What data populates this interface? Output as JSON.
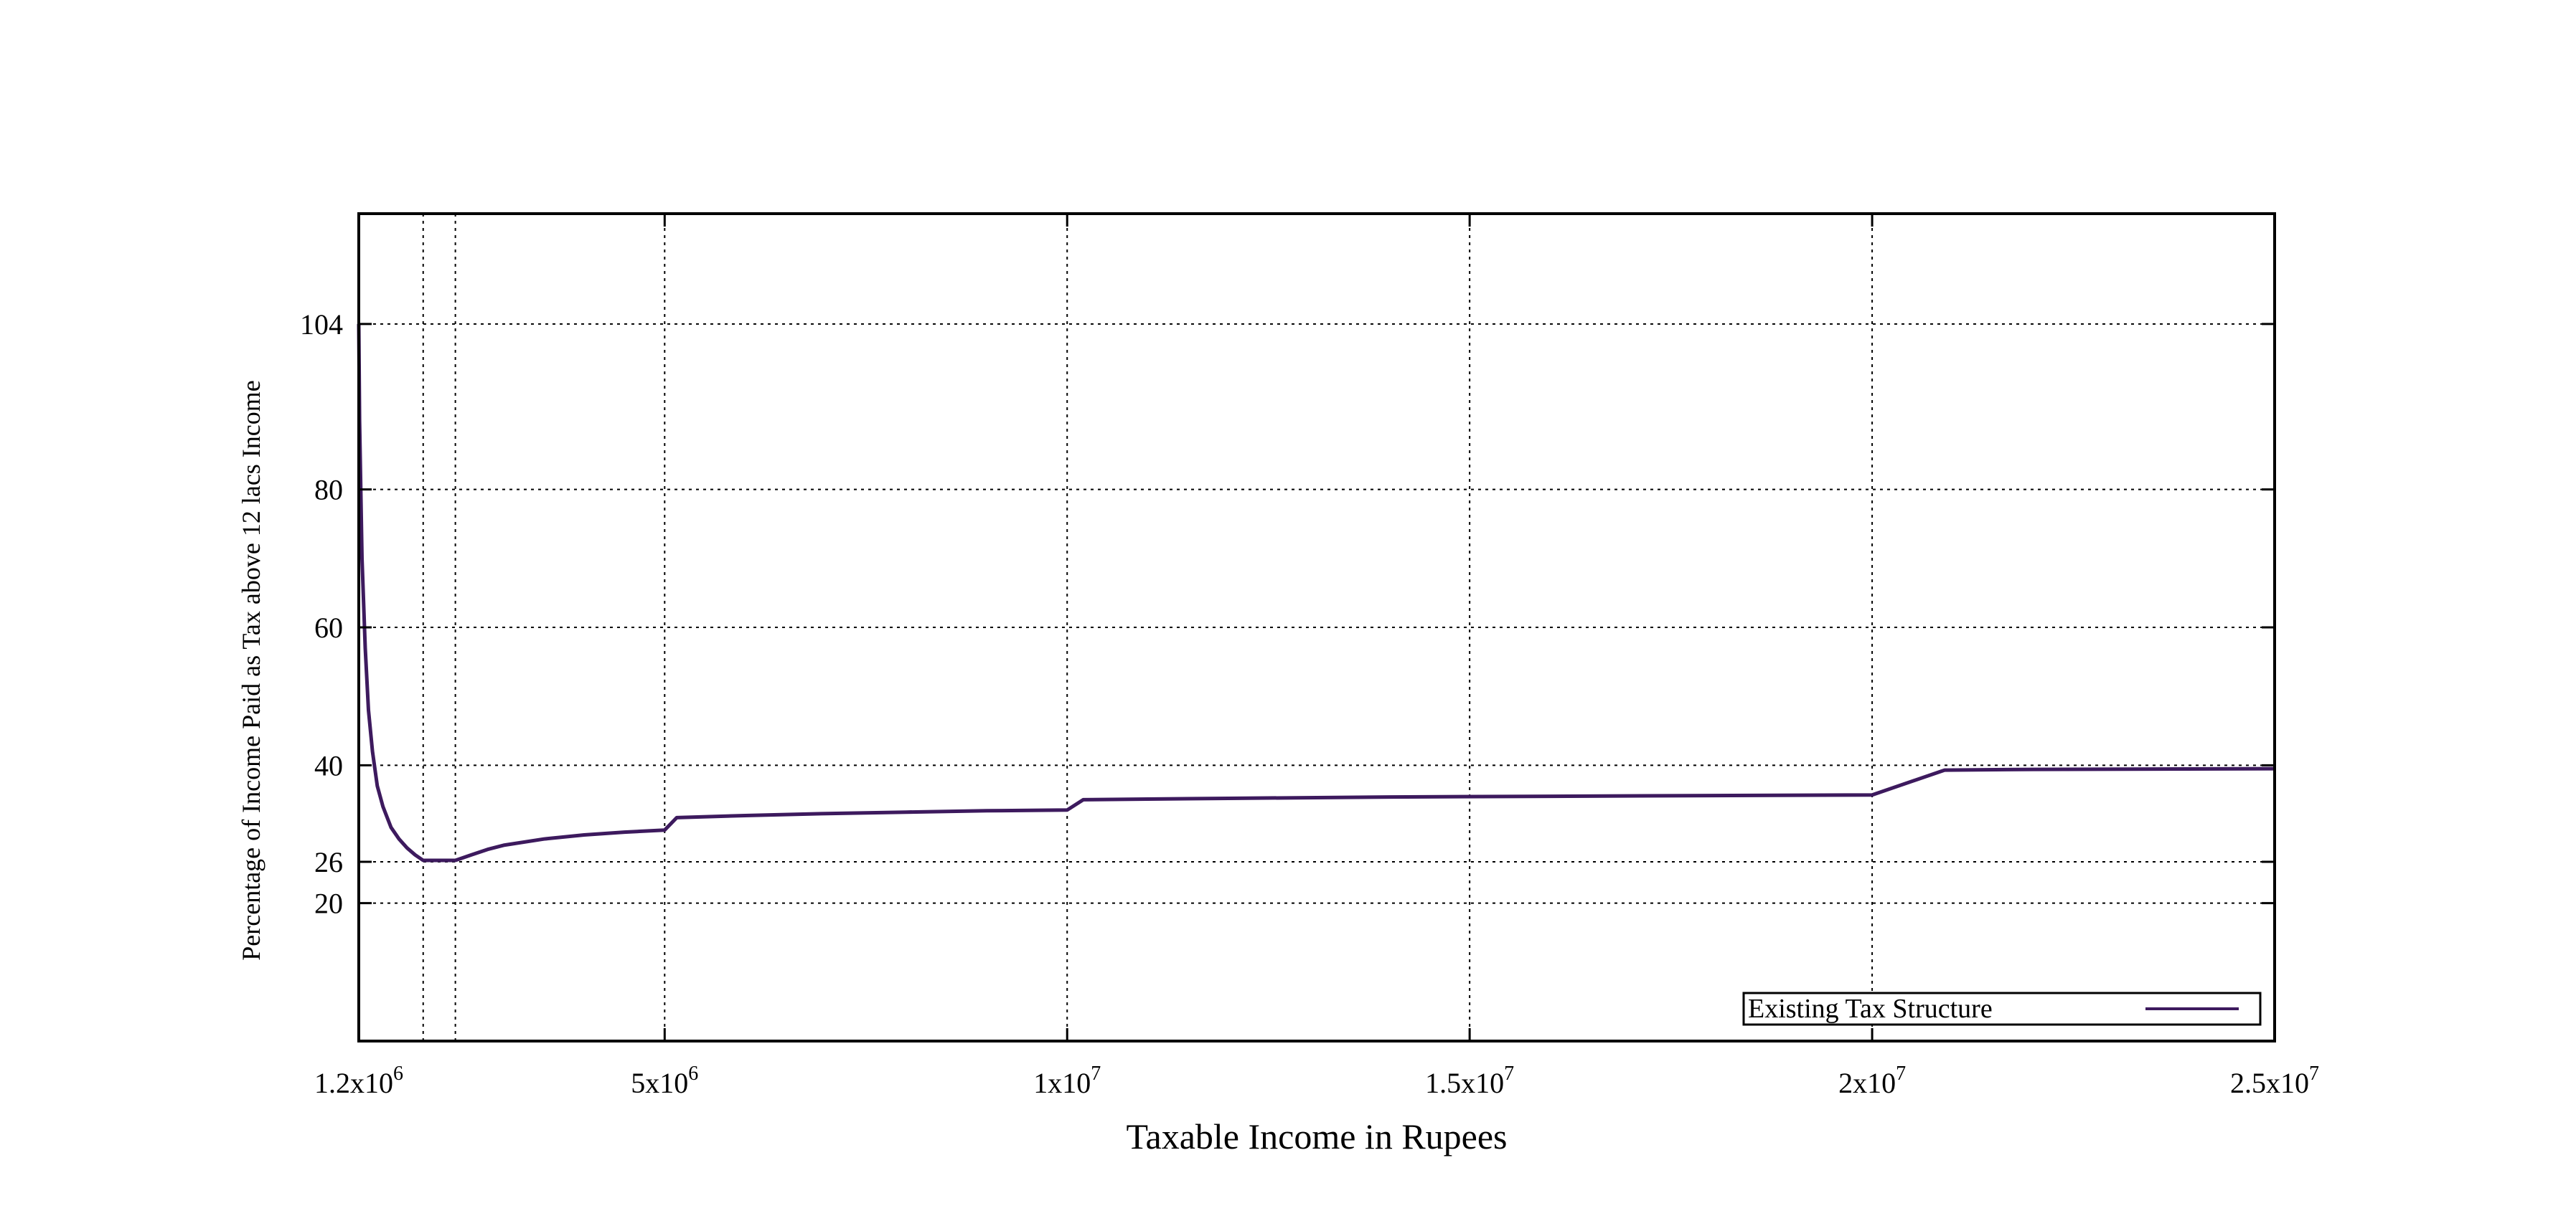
{
  "chart_data": {
    "type": "line",
    "title": "",
    "xlabel": "Taxable Income in Rupees",
    "ylabel": "Percentage of Income Paid as Tax above 12 lacs Income",
    "xlim": [
      1200000,
      25000000
    ],
    "ylim": [
      0,
      120
    ],
    "grid": true,
    "legend_position": "bottom-right",
    "x_ticks": [
      {
        "value": 1200000,
        "base": "1.2x10",
        "exp": "6"
      },
      {
        "value": 5000000,
        "base": "5x10",
        "exp": "6"
      },
      {
        "value": 10000000,
        "base": "1x10",
        "exp": "7"
      },
      {
        "value": 15000000,
        "base": "1.5x10",
        "exp": "7"
      },
      {
        "value": 20000000,
        "base": "2x10",
        "exp": "7"
      },
      {
        "value": 25000000,
        "base": "2.5x10",
        "exp": "7"
      }
    ],
    "x_extra_gridlines": [
      2000000,
      2400000
    ],
    "y_ticks": [
      {
        "value": 104,
        "label": "104"
      },
      {
        "value": 80,
        "label": "80"
      },
      {
        "value": 60,
        "label": "60"
      },
      {
        "value": 40,
        "label": "40"
      },
      {
        "value": 26,
        "label": "26"
      },
      {
        "value": 20,
        "label": "20"
      }
    ],
    "series": [
      {
        "name": "Existing Tax Structure",
        "color": "#3d1a5e",
        "x": [
          1200000,
          1210000,
          1240000,
          1280000,
          1320000,
          1370000,
          1430000,
          1500000,
          1600000,
          1700000,
          1800000,
          1900000,
          2000000,
          2400000,
          2600000,
          2800000,
          3000000,
          3500000,
          4000000,
          4500000,
          5000000,
          5150000,
          6000000,
          7000000,
          8000000,
          9000000,
          10000000,
          10200000,
          11000000,
          12000000,
          14000000,
          16000000,
          18000000,
          20000000,
          20900000,
          22000000,
          25000000
        ],
        "y": [
          104,
          90,
          70,
          57,
          48,
          42,
          37,
          34,
          31,
          29.3,
          28,
          27,
          26.2,
          26.2,
          27,
          27.8,
          28.4,
          29.3,
          29.9,
          30.3,
          30.6,
          32.4,
          32.7,
          33,
          33.2,
          33.4,
          33.5,
          35,
          35.1,
          35.2,
          35.4,
          35.5,
          35.6,
          35.7,
          39.3,
          39.4,
          39.5
        ]
      }
    ]
  }
}
